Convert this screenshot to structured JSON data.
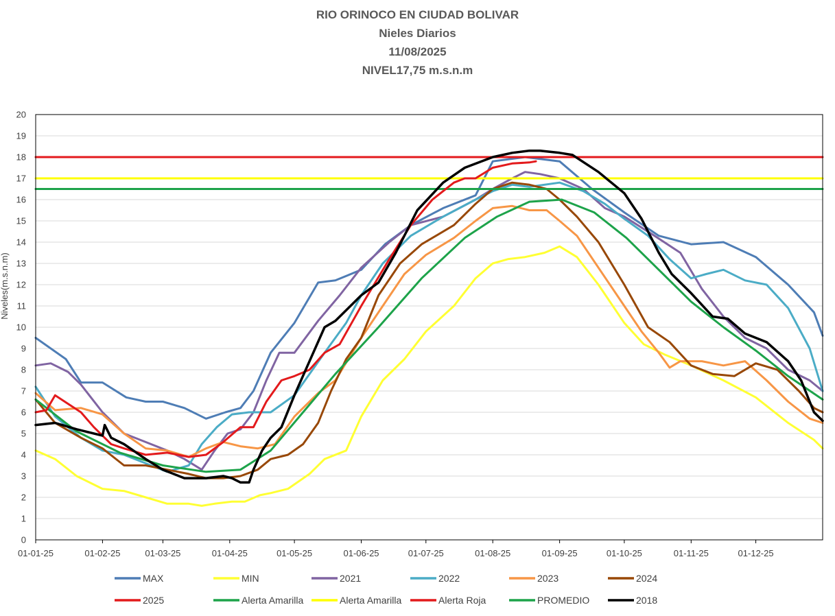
{
  "title_lines": [
    "RIO ORINOCO EN CIUDAD BOLIVAR",
    "Nieles Diarios",
    "11/08/2025",
    "NIVEL17,75 m.s.n.m"
  ],
  "chart_data": {
    "type": "line",
    "ylabel": "Niveles(m.s.n.m)",
    "ylim": [
      0,
      20
    ],
    "y_ticks": [
      "0",
      "1",
      "2",
      "3",
      "4",
      "5",
      "6",
      "7",
      "8",
      "9",
      "10",
      "11",
      "12",
      "13",
      "14",
      "15",
      "16",
      "17",
      "18",
      "19",
      "20"
    ],
    "x_ticks": [
      "01-01-25",
      "01-02-25",
      "01-03-25",
      "01-04-25",
      "01-05-25",
      "01-06-25",
      "01-07-25",
      "01-08-25",
      "01-09-25",
      "01-10-25",
      "01-11-25",
      "01-12-25"
    ],
    "x_day_of_year": [
      1,
      32,
      60,
      91,
      121,
      152,
      182,
      213,
      244,
      274,
      305,
      335
    ],
    "x_max_day": 366,
    "grid": true,
    "legend_position": "bottom",
    "series": [
      {
        "name": "MAX",
        "color": "#4E7DB5",
        "x": [
          1,
          15,
          22,
          32,
          43,
          52,
          60,
          70,
          80,
          89,
          96,
          102,
          110,
          121,
          132,
          140,
          152,
          163,
          175,
          190,
          205,
          213,
          228,
          244,
          259,
          274,
          290,
          305,
          320,
          335,
          350,
          362,
          366
        ],
        "y": [
          9.5,
          8.5,
          7.4,
          7.4,
          6.7,
          6.5,
          6.5,
          6.2,
          5.7,
          6.0,
          6.2,
          7.0,
          8.8,
          10.2,
          12.1,
          12.2,
          12.7,
          13.9,
          14.8,
          15.6,
          16.2,
          17.8,
          18.0,
          17.8,
          16.5,
          15.4,
          14.3,
          13.9,
          14.0,
          13.3,
          12.0,
          10.7,
          9.6
        ]
      },
      {
        "name": "MIN",
        "color": "#FFFF33",
        "x": [
          1,
          10,
          20,
          32,
          42,
          52,
          62,
          72,
          78,
          84,
          92,
          98,
          105,
          110,
          118,
          128,
          135,
          145,
          152,
          162,
          172,
          182,
          195,
          205,
          213,
          220,
          228,
          237,
          244,
          252,
          262,
          274,
          283,
          293,
          305,
          320,
          335,
          350,
          362,
          366
        ],
        "y": [
          4.2,
          3.8,
          3.0,
          2.4,
          2.3,
          2.0,
          1.7,
          1.7,
          1.6,
          1.7,
          1.8,
          1.8,
          2.1,
          2.2,
          2.4,
          3.1,
          3.8,
          4.2,
          5.8,
          7.5,
          8.5,
          9.8,
          11.0,
          12.3,
          13.0,
          13.2,
          13.3,
          13.5,
          13.8,
          13.3,
          12.0,
          10.2,
          9.2,
          8.7,
          8.2,
          7.5,
          6.7,
          5.5,
          4.7,
          4.3
        ]
      },
      {
        "name": "2021",
        "color": "#8064A2",
        "x": [
          1,
          8,
          16,
          22,
          32,
          42,
          52,
          62,
          70,
          78,
          84,
          90,
          96,
          102,
          108,
          114,
          121,
          132,
          142,
          152,
          165,
          175,
          190,
          205,
          213,
          222,
          228,
          235,
          244,
          255,
          265,
          274,
          288,
          300,
          310,
          320,
          330,
          340,
          350,
          360,
          366
        ],
        "y": [
          8.2,
          8.3,
          7.9,
          7.3,
          6.0,
          5.0,
          4.6,
          4.2,
          3.8,
          3.3,
          4.2,
          5.0,
          5.2,
          6.0,
          7.5,
          8.8,
          8.8,
          10.3,
          11.5,
          12.8,
          14.0,
          14.8,
          15.2,
          16.0,
          16.5,
          17.0,
          17.3,
          17.2,
          17.0,
          16.5,
          15.6,
          15.2,
          14.3,
          13.5,
          11.8,
          10.5,
          9.5,
          9.0,
          8.0,
          7.5,
          7.0
        ]
      },
      {
        "name": "2022",
        "color": "#4BACC6",
        "x": [
          1,
          10,
          22,
          32,
          42,
          52,
          62,
          72,
          78,
          85,
          92,
          100,
          110,
          121,
          128,
          135,
          145,
          152,
          162,
          175,
          190,
          205,
          213,
          222,
          230,
          244,
          255,
          265,
          274,
          285,
          295,
          305,
          312,
          320,
          330,
          340,
          350,
          360,
          366
        ],
        "y": [
          7.2,
          5.8,
          4.8,
          4.2,
          4.0,
          3.6,
          3.2,
          3.5,
          4.5,
          5.3,
          5.9,
          6.0,
          6.0,
          6.8,
          7.8,
          8.8,
          10.2,
          11.5,
          13.0,
          14.3,
          15.2,
          16.0,
          16.4,
          16.7,
          16.6,
          16.8,
          16.4,
          15.8,
          15.1,
          14.3,
          13.2,
          12.3,
          12.5,
          12.7,
          12.2,
          12.0,
          10.9,
          9.0,
          7.0
        ]
      },
      {
        "name": "2023",
        "color": "#F79646",
        "x": [
          1,
          10,
          22,
          32,
          42,
          52,
          62,
          72,
          80,
          88,
          96,
          104,
          112,
          121,
          132,
          140,
          146,
          152,
          162,
          172,
          182,
          195,
          205,
          213,
          222,
          230,
          238,
          244,
          252,
          262,
          274,
          282,
          290,
          295,
          300,
          310,
          320,
          330,
          340,
          350,
          360,
          366
        ],
        "y": [
          6.9,
          6.1,
          6.2,
          5.9,
          5.0,
          4.3,
          4.2,
          3.9,
          4.3,
          4.6,
          4.4,
          4.3,
          4.5,
          5.8,
          6.9,
          7.5,
          8.5,
          9.5,
          11.0,
          12.5,
          13.4,
          14.2,
          15.0,
          15.6,
          15.7,
          15.5,
          15.5,
          15.0,
          14.3,
          12.8,
          11.0,
          9.8,
          8.8,
          8.1,
          8.4,
          8.4,
          8.2,
          8.4,
          7.5,
          6.5,
          5.7,
          5.5
        ]
      },
      {
        "name": "2024",
        "color": "#984807",
        "x": [
          1,
          10,
          22,
          32,
          42,
          52,
          62,
          72,
          80,
          88,
          96,
          104,
          110,
          118,
          125,
          132,
          138,
          145,
          152,
          160,
          170,
          180,
          195,
          205,
          213,
          222,
          230,
          238,
          244,
          252,
          262,
          274,
          285,
          295,
          305,
          315,
          325,
          335,
          345,
          355,
          362,
          366
        ],
        "y": [
          6.6,
          5.5,
          4.8,
          4.3,
          3.5,
          3.5,
          3.3,
          3.1,
          2.9,
          2.9,
          3.0,
          3.3,
          3.8,
          4.0,
          4.5,
          5.5,
          7.0,
          8.5,
          9.5,
          11.5,
          13.0,
          13.9,
          14.8,
          15.8,
          16.5,
          16.8,
          16.7,
          16.5,
          16.0,
          15.2,
          14.0,
          12.0,
          10.0,
          9.3,
          8.2,
          7.8,
          7.7,
          8.3,
          8.0,
          7.0,
          6.2,
          6.0
        ]
      },
      {
        "name": "2025",
        "color": "#E31A1C",
        "x": [
          1,
          6,
          10,
          16,
          22,
          28,
          36,
          42,
          52,
          62,
          72,
          80,
          88,
          96,
          102,
          108,
          115,
          121,
          128,
          135,
          142,
          152,
          165,
          175,
          185,
          195,
          200,
          205,
          213,
          222,
          230,
          233
        ],
        "y": [
          6.0,
          6.1,
          6.8,
          6.4,
          6.0,
          5.3,
          4.5,
          4.3,
          4.0,
          4.1,
          3.9,
          4.0,
          4.6,
          5.3,
          5.3,
          6.5,
          7.5,
          7.7,
          8.0,
          8.8,
          9.2,
          11.0,
          13.2,
          14.8,
          16.0,
          16.8,
          17.0,
          17.0,
          17.5,
          17.7,
          17.75,
          17.8
        ]
      },
      {
        "name": "Alerta Amarilla",
        "color": "#1DA34A",
        "x": [
          1,
          366
        ],
        "y": [
          16.5,
          16.5
        ]
      },
      {
        "name": "Alerta Amarilla",
        "color": "#FFFF00",
        "x": [
          1,
          366
        ],
        "y": [
          17.0,
          17.0
        ]
      },
      {
        "name": "Alerta Roja",
        "color": "#E31A1C",
        "x": [
          1,
          366
        ],
        "y": [
          18.0,
          18.0
        ]
      },
      {
        "name": "PROMEDIO",
        "color": "#1DA34A",
        "x": [
          1,
          20,
          40,
          60,
          80,
          96,
          110,
          125,
          140,
          160,
          180,
          200,
          215,
          230,
          245,
          260,
          275,
          290,
          305,
          320,
          335,
          350,
          366
        ],
        "y": [
          6.6,
          5.1,
          4.1,
          3.5,
          3.2,
          3.3,
          4.2,
          6.0,
          7.8,
          10.0,
          12.3,
          14.2,
          15.2,
          15.9,
          16.0,
          15.4,
          14.2,
          12.7,
          11.2,
          10.0,
          8.9,
          7.7,
          6.6
        ]
      },
      {
        "name": "2018",
        "color": "#000000",
        "x": [
          1,
          10,
          20,
          32,
          33,
          36,
          42,
          52,
          60,
          70,
          80,
          88,
          92,
          96,
          100,
          102,
          106,
          110,
          115,
          121,
          128,
          135,
          140,
          146,
          152,
          160,
          168,
          178,
          190,
          200,
          213,
          222,
          230,
          235,
          244,
          250,
          262,
          274,
          282,
          290,
          296,
          305,
          315,
          322,
          330,
          340,
          350,
          356,
          362,
          366
        ],
        "y": [
          5.4,
          5.5,
          5.2,
          4.9,
          5.4,
          4.8,
          4.5,
          3.8,
          3.3,
          2.9,
          2.9,
          3.0,
          2.9,
          2.7,
          2.7,
          3.3,
          4.2,
          4.8,
          5.3,
          6.8,
          8.4,
          10.0,
          10.3,
          10.9,
          11.5,
          12.1,
          13.5,
          15.5,
          16.8,
          17.5,
          18.0,
          18.2,
          18.3,
          18.3,
          18.2,
          18.1,
          17.3,
          16.3,
          15.1,
          13.5,
          12.5,
          11.6,
          10.5,
          10.4,
          9.7,
          9.3,
          8.4,
          7.5,
          6.0,
          5.6
        ]
      }
    ]
  }
}
